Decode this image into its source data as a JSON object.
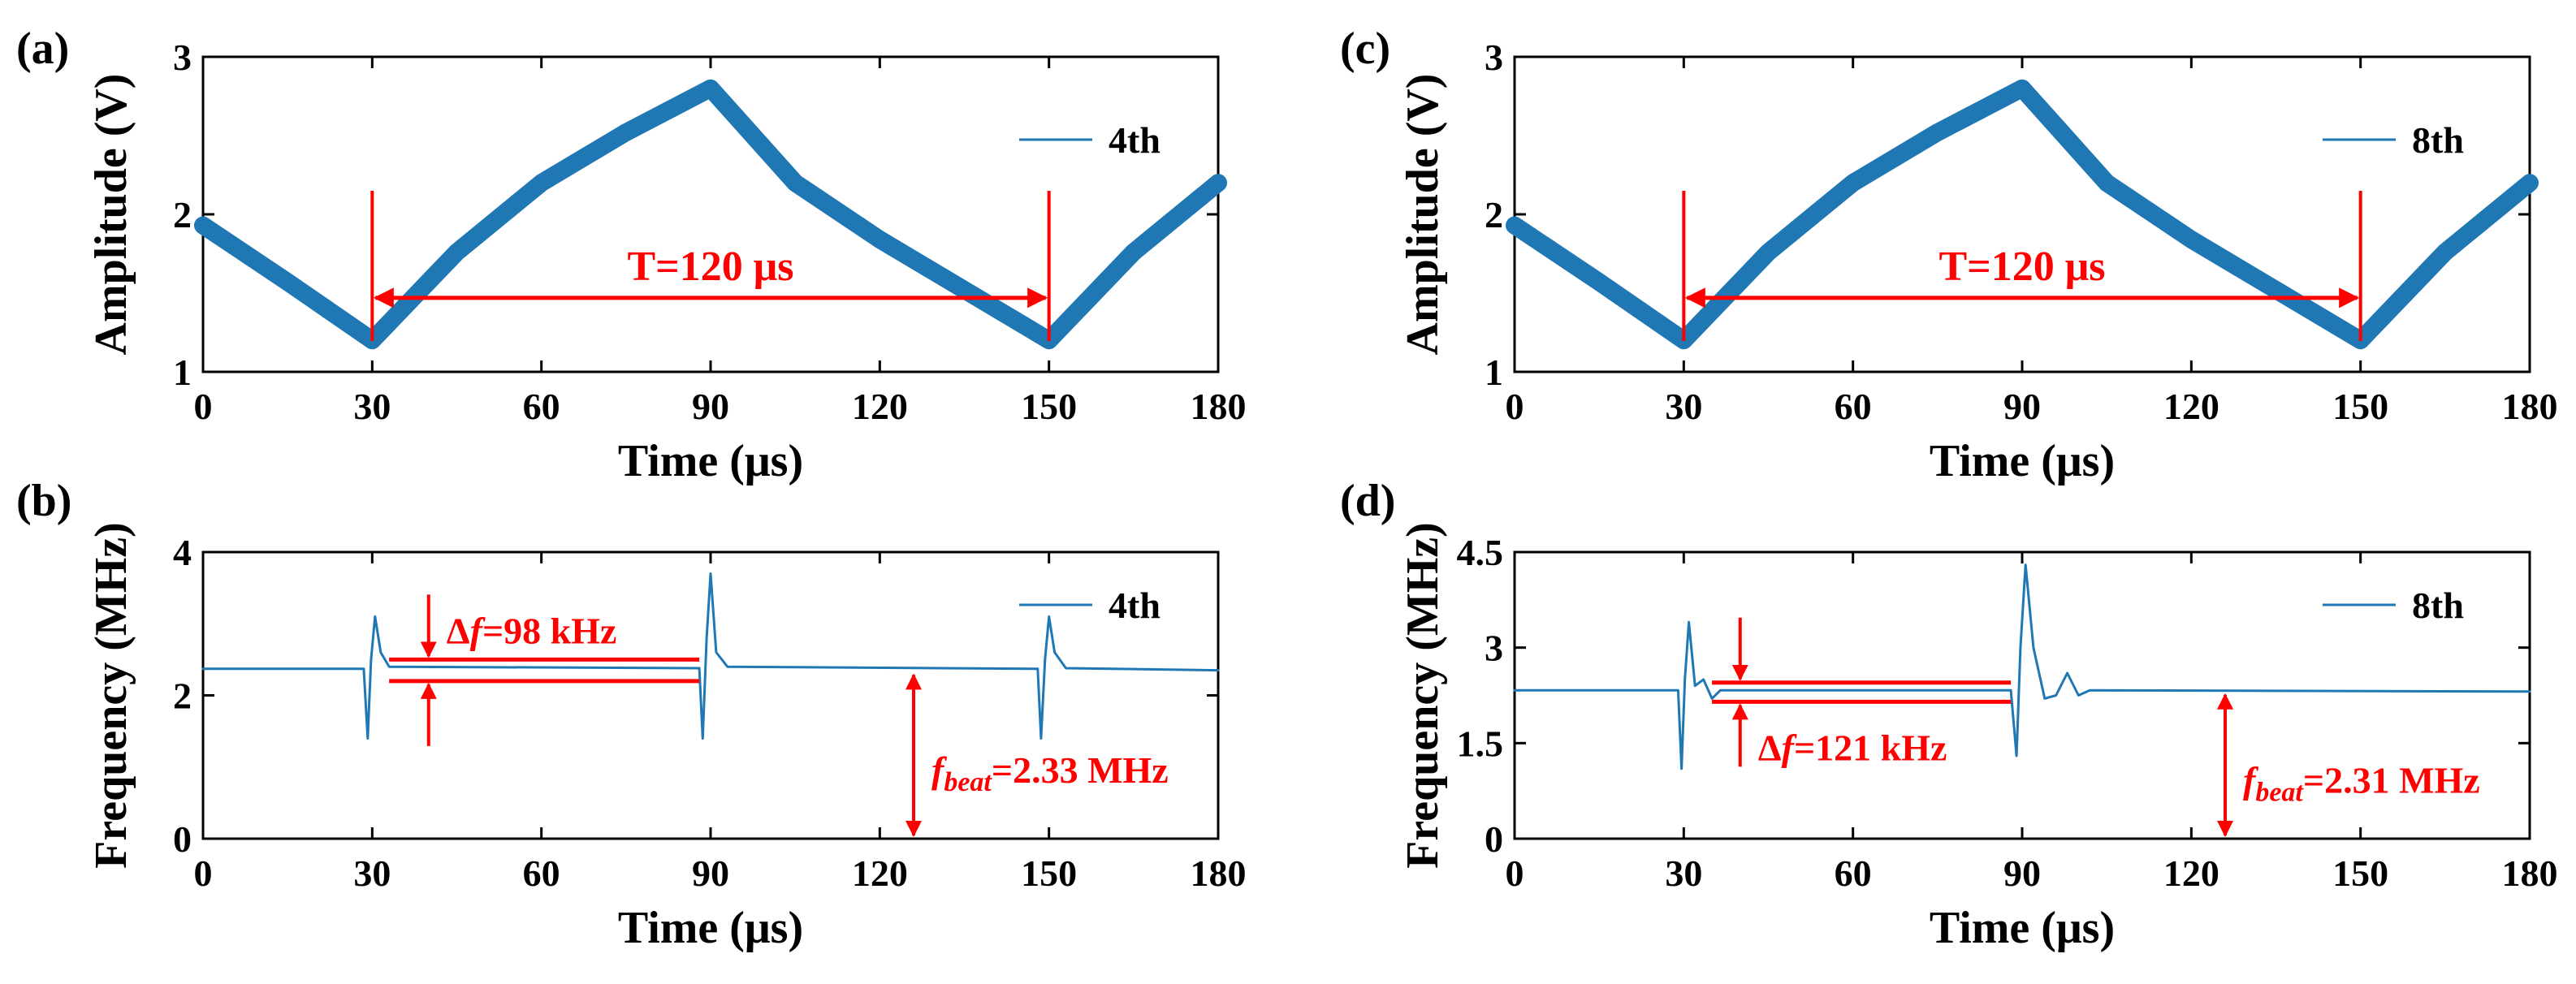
{
  "colors": {
    "trace": "#1f77b4",
    "annotation": "#ff0000",
    "axis": "#000000"
  },
  "chart_data": [
    {
      "id": "a",
      "panel_label": "(a)",
      "type": "line",
      "xlabel": "Time (μs)",
      "ylabel": "Amplitude (V)",
      "xlim": [
        0,
        180
      ],
      "ylim": [
        1,
        3
      ],
      "xticks": [
        0,
        30,
        60,
        90,
        120,
        150,
        180
      ],
      "yticks": [
        1,
        2,
        3
      ],
      "series": [
        {
          "name": "4th",
          "x": [
            0,
            15,
            30,
            45,
            60,
            75,
            90,
            105,
            120,
            135,
            150,
            165,
            180
          ],
          "y": [
            1.93,
            1.57,
            1.2,
            1.76,
            2.2,
            2.52,
            2.8,
            2.2,
            1.84,
            1.52,
            1.2,
            1.76,
            2.2
          ]
        }
      ],
      "annotations": [
        {
          "text": "T=120 μs",
          "x_from": 30,
          "x_to": 150,
          "y": 1.47
        }
      ]
    },
    {
      "id": "b",
      "panel_label": "(b)",
      "type": "line",
      "xlabel": "Time (μs)",
      "ylabel": "Frequency (MHz)",
      "xlim": [
        0,
        180
      ],
      "ylim": [
        0,
        4
      ],
      "xticks": [
        0,
        30,
        60,
        90,
        120,
        150,
        180
      ],
      "yticks": [
        0,
        2,
        4
      ],
      "series": [
        {
          "name": "4th",
          "x": [
            0,
            28.5,
            29.2,
            29.8,
            30.5,
            31.5,
            33,
            88,
            88.6,
            89.3,
            90,
            91,
            93,
            148,
            148.6,
            149.3,
            150,
            151,
            153,
            180
          ],
          "y": [
            2.37,
            2.37,
            1.4,
            2.5,
            3.1,
            2.6,
            2.4,
            2.38,
            1.4,
            2.8,
            3.7,
            2.6,
            2.4,
            2.37,
            1.4,
            2.5,
            3.1,
            2.6,
            2.38,
            2.35
          ]
        }
      ],
      "annotations": [
        {
          "text_prefix": "Δ",
          "text_italic": "f",
          "text_suffix": "=98 kHz",
          "y_top": 2.5,
          "y_bottom": 2.2,
          "x_from": 33,
          "x_to": 88,
          "arrow_x": 40
        },
        {
          "text_italic": "f",
          "text_sub": "beat",
          "text_suffix": "=2.33 MHz",
          "x": 126,
          "y_from": 0,
          "y_to": 2.33
        }
      ]
    },
    {
      "id": "c",
      "panel_label": "(c)",
      "type": "line",
      "xlabel": "Time (μs)",
      "ylabel": "Amplitude (V)",
      "xlim": [
        0,
        180
      ],
      "ylim": [
        1,
        3
      ],
      "xticks": [
        0,
        30,
        60,
        90,
        120,
        150,
        180
      ],
      "yticks": [
        1,
        2,
        3
      ],
      "series": [
        {
          "name": "8th",
          "x": [
            0,
            15,
            30,
            45,
            60,
            75,
            90,
            105,
            120,
            135,
            150,
            165,
            180
          ],
          "y": [
            1.93,
            1.57,
            1.2,
            1.76,
            2.2,
            2.52,
            2.8,
            2.2,
            1.84,
            1.52,
            1.2,
            1.76,
            2.2
          ]
        }
      ],
      "annotations": [
        {
          "text": "T=120 μs",
          "x_from": 30,
          "x_to": 150,
          "y": 1.47
        }
      ]
    },
    {
      "id": "d",
      "panel_label": "(d)",
      "type": "line",
      "xlabel": "Time (μs)",
      "ylabel": "Frequency (MHz)",
      "xlim": [
        0,
        180
      ],
      "ylim": [
        0,
        4.5
      ],
      "xticks": [
        0,
        30,
        60,
        90,
        120,
        150,
        180
      ],
      "yticks": [
        0,
        1.5,
        3,
        4.5
      ],
      "series": [
        {
          "name": "8th",
          "x": [
            0,
            29,
            29.6,
            30.2,
            30.9,
            32,
            33.5,
            35,
            36.5,
            88,
            89,
            89.7,
            90.6,
            92,
            94,
            96,
            98,
            100,
            102,
            180
          ],
          "y": [
            2.33,
            2.33,
            1.1,
            2.5,
            3.4,
            2.4,
            2.5,
            2.2,
            2.33,
            2.33,
            1.3,
            3.0,
            4.3,
            3.0,
            2.2,
            2.25,
            2.6,
            2.25,
            2.33,
            2.31
          ]
        }
      ],
      "annotations": [
        {
          "text_prefix": "Δ",
          "text_italic": "f",
          "text_suffix": "=121 kHz",
          "y_top": 2.45,
          "y_bottom": 2.15,
          "x_from": 35,
          "x_to": 88,
          "arrow_x": 40
        },
        {
          "text_italic": "f",
          "text_sub": "beat",
          "text_suffix": "=2.31 MHz",
          "x": 126,
          "y_from": 0,
          "y_to": 2.31
        }
      ]
    }
  ]
}
